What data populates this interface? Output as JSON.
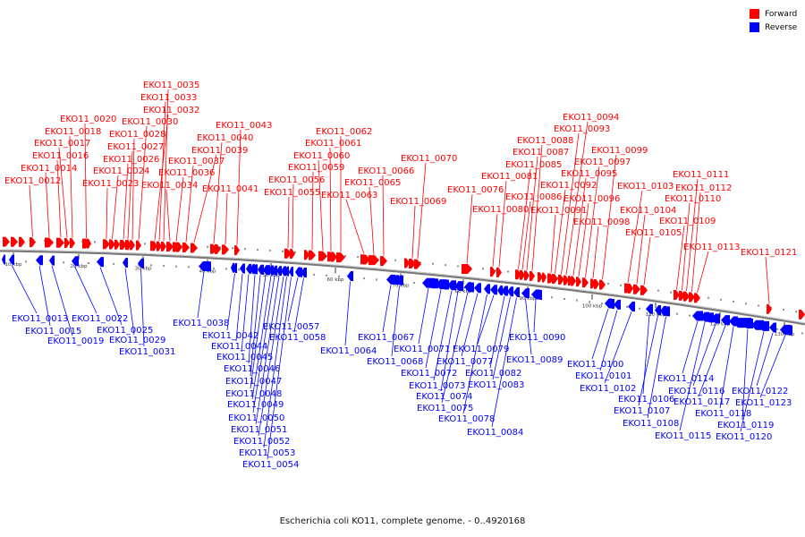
{
  "title": "Escherichia coli KO11, complete genome. - 0..4920168",
  "legend": [
    {
      "label": "Forward",
      "color": "#ff0000"
    },
    {
      "label": "Reverse",
      "color": "#0000ff"
    }
  ],
  "colors": {
    "forward": "#ff0000",
    "reverse": "#0000ff",
    "axis": "#888888"
  },
  "scale_ticks": [
    "10 kbp",
    "20 kbp",
    "30 kbp",
    "40 kbp",
    "50 kbp",
    "60 kbp",
    "70 kbp",
    "80 kbp",
    "90 kbp",
    "100 kbp",
    "110 kbp",
    "120 kbp",
    "130 kbp"
  ],
  "forward_genes": [
    "EKO11_0012",
    "EKO11_0014",
    "EKO11_0016",
    "EKO11_0017",
    "EKO11_0018",
    "EKO11_0020",
    "EKO11_0023",
    "EKO11_0024",
    "EKO11_0026",
    "EKO11_0027",
    "EKO11_0028",
    "EKO11_0030",
    "EKO11_0032",
    "EKO11_0033",
    "EKO11_0035",
    "EKO11_0034",
    "EKO11_0036",
    "EKO11_0037",
    "EKO11_0039",
    "EKO11_0040",
    "EKO11_0041",
    "EKO11_0043",
    "EKO11_0055",
    "EKO11_0056",
    "EKO11_0059",
    "EKO11_0060",
    "EKO11_0061",
    "EKO11_0062",
    "EKO11_0063",
    "EKO11_0065",
    "EKO11_0066",
    "EKO11_0069",
    "EKO11_0070",
    "EKO11_0076",
    "EKO11_0080",
    "EKO11_0081",
    "EKO11_0085",
    "EKO11_0086",
    "EKO11_0087",
    "EKO11_0088",
    "EKO11_0091",
    "EKO11_0092",
    "EKO11_0093",
    "EKO11_0094",
    "EKO11_0095",
    "EKO11_0096",
    "EKO11_0097",
    "EKO11_0098",
    "EKO11_0099",
    "EKO11_0103",
    "EKO11_0104",
    "EKO11_0105",
    "EKO11_0109",
    "EKO11_0110",
    "EKO11_0111",
    "EKO11_0112",
    "EKO11_0113",
    "EKO11_0121"
  ],
  "reverse_genes": [
    "EKO11_0013",
    "EKO11_0015",
    "EKO11_0019",
    "EKO11_0022",
    "EKO11_0025",
    "EKO11_0029",
    "EKO11_0031",
    "EKO11_0038",
    "EKO11_0042",
    "EKO11_0044",
    "EKO11_0045",
    "EKO11_0046",
    "EKO11_0047",
    "EKO11_0048",
    "EKO11_0049",
    "EKO11_0050",
    "EKO11_0051",
    "EKO11_0052",
    "EKO11_0053",
    "EKO11_0054",
    "EKO11_0057",
    "EKO11_0058",
    "EKO11_0064",
    "EKO11_0067",
    "EKO11_0068",
    "EKO11_0071",
    "EKO11_0072",
    "EKO11_0073",
    "EKO11_0074",
    "EKO11_0075",
    "EKO11_0077",
    "EKO11_0078",
    "EKO11_0079",
    "EKO11_0082",
    "EKO11_0083",
    "EKO11_0084",
    "EKO11_0089",
    "EKO11_0090",
    "EKO11_0100",
    "EKO11_0101",
    "EKO11_0102",
    "EKO11_0106",
    "EKO11_0107",
    "EKO11_0108",
    "EKO11_0114",
    "EKO11_0115",
    "EKO11_0116",
    "EKO11_0117",
    "EKO11_0118",
    "EKO11_0119",
    "EKO11_0120",
    "EKO11_0122",
    "EKO11_0123"
  ]
}
